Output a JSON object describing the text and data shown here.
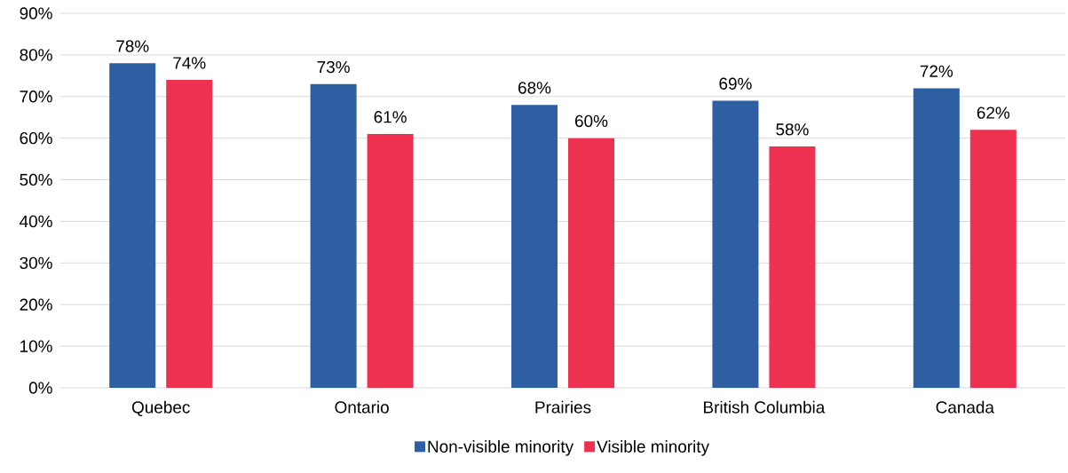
{
  "chart_data": {
    "type": "bar",
    "categories": [
      "Quebec",
      "Ontario",
      "Prairies",
      "British Columbia",
      "Canada"
    ],
    "series": [
      {
        "name": "Non-visible minority",
        "color": "#2e5fa3",
        "values": [
          78,
          73,
          68,
          69,
          72
        ],
        "value_labels": [
          "78%",
          "73%",
          "68%",
          "69%",
          "72%"
        ]
      },
      {
        "name": "Visible minority",
        "color": "#ee3150",
        "values": [
          74,
          61,
          60,
          58,
          62
        ],
        "value_labels": [
          "74%",
          "61%",
          "60%",
          "58%",
          "62%"
        ]
      }
    ],
    "ylim": [
      0,
      90
    ],
    "yticks": [
      {
        "value": 0,
        "label": "0%"
      },
      {
        "value": 10,
        "label": "10%"
      },
      {
        "value": 20,
        "label": "20%"
      },
      {
        "value": 30,
        "label": "30%"
      },
      {
        "value": 40,
        "label": "40%"
      },
      {
        "value": 50,
        "label": "50%"
      },
      {
        "value": 60,
        "label": "60%"
      },
      {
        "value": 70,
        "label": "70%"
      },
      {
        "value": 80,
        "label": "80%"
      },
      {
        "value": 90,
        "label": "90%"
      }
    ],
    "grid": "y",
    "legend": "bottom"
  }
}
